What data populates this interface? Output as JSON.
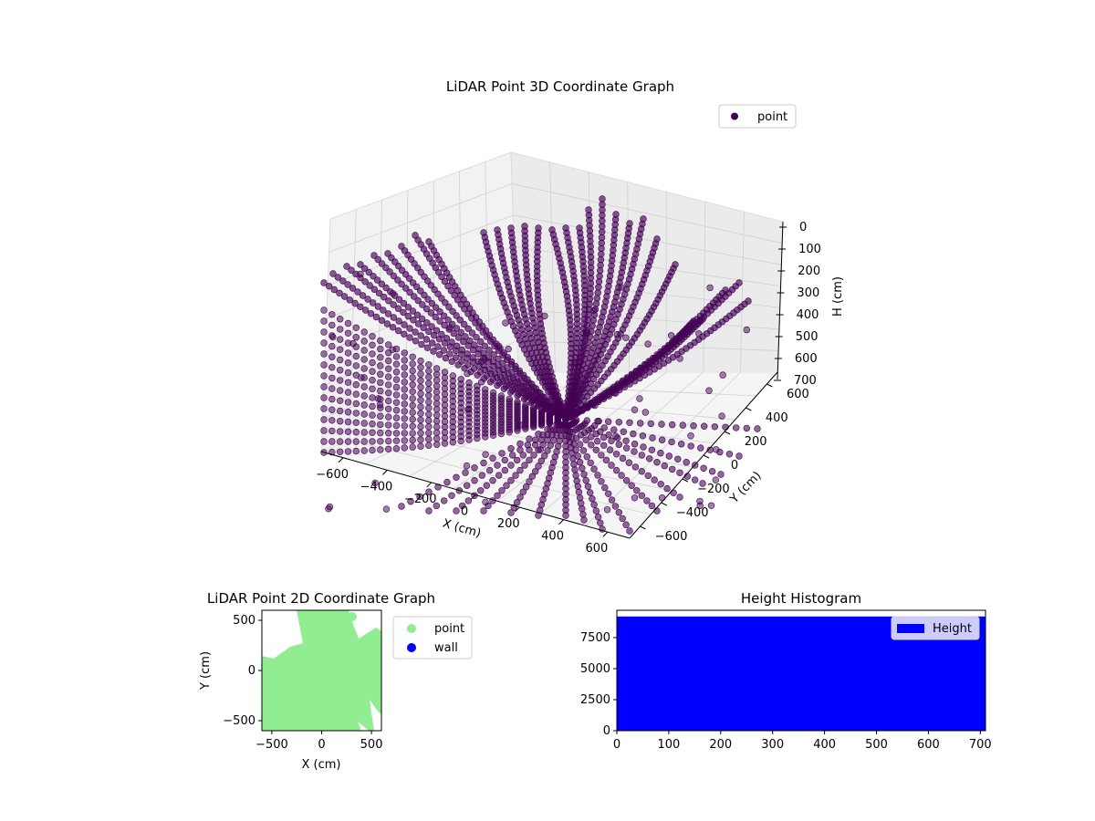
{
  "figure": {
    "title_3d": "LiDAR Point 3D Coordinate Graph",
    "title_2d": "LiDAR Point 2D Coordinate Graph",
    "title_hist": "Height Histogram"
  },
  "chart_data": [
    {
      "type": "scatter",
      "projection": "3d",
      "title": "LiDAR Point 3D Coordinate Graph",
      "xlabel": "X (cm)",
      "ylabel": "Y (cm)",
      "zlabel": "H (cm)",
      "xlim": [
        -700,
        700
      ],
      "ylim": [
        -700,
        700
      ],
      "zlim": [
        0,
        700
      ],
      "z_inverted": true,
      "x_ticks": [
        "−600",
        "−400",
        "−200",
        "0",
        "200",
        "400",
        "600"
      ],
      "y_ticks": [
        "−600",
        "−400",
        "−200",
        "0",
        "200",
        "400",
        "600"
      ],
      "z_ticks": [
        "0",
        "100",
        "200",
        "300",
        "400",
        "500",
        "600",
        "700"
      ],
      "legend": {
        "entries": [
          "point"
        ],
        "position": "upper-right"
      },
      "grid": true,
      "series": [
        {
          "name": "point",
          "color": "#440154"
        }
      ]
    },
    {
      "type": "scatter",
      "title": "LiDAR Point 2D Coordinate Graph",
      "xlabel": "X (cm)",
      "ylabel": "Y (cm)",
      "xlim": [
        -600,
        600
      ],
      "ylim": [
        -600,
        600
      ],
      "x_ticks": [
        "−500",
        "0",
        "500"
      ],
      "y_ticks": [
        "−500",
        "0",
        "500"
      ],
      "legend": {
        "entries": [
          "point",
          "wall"
        ],
        "position": "outside-right"
      },
      "series": [
        {
          "name": "point",
          "color": "#90ee90"
        },
        {
          "name": "wall",
          "color": "#0000ff"
        }
      ]
    },
    {
      "type": "bar",
      "title": "Height Histogram",
      "xlim": [
        0,
        710
      ],
      "ylim": [
        0,
        9700
      ],
      "x_ticks": [
        "0",
        "100",
        "200",
        "300",
        "400",
        "500",
        "600",
        "700"
      ],
      "y_ticks": [
        "0",
        "2500",
        "5000",
        "7500"
      ],
      "legend": {
        "entries": [
          "Height"
        ],
        "position": "upper-right"
      },
      "series": [
        {
          "name": "Height",
          "color": "#0000ff",
          "uniform_count": 9200
        }
      ]
    }
  ]
}
